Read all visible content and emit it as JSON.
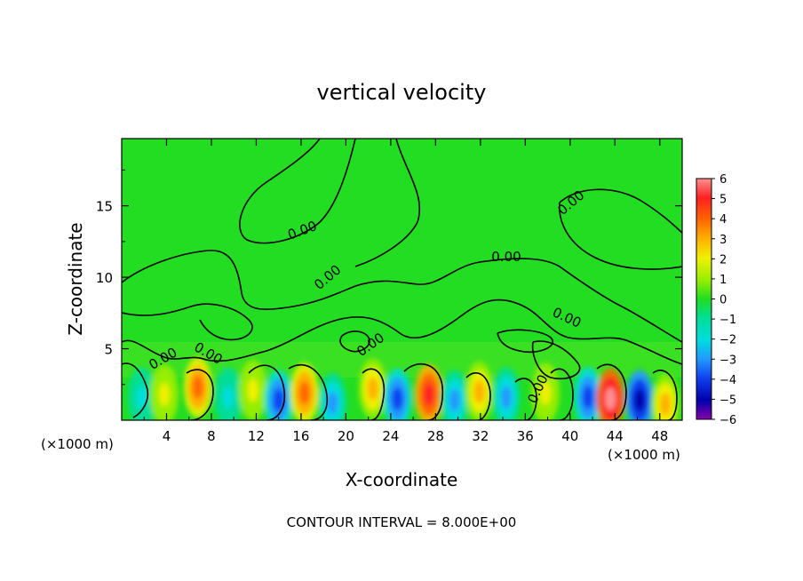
{
  "chart_data": {
    "type": "heatmap",
    "title": "vertical velocity",
    "xlabel": "X-coordinate",
    "ylabel": "Z-coordinate",
    "x_unit_left": "(×1000 m)",
    "x_unit_right": "(×1000 m)",
    "xlim": [
      0,
      50
    ],
    "ylim": [
      0,
      19.7
    ],
    "x_ticks": [
      4,
      8,
      12,
      16,
      20,
      24,
      28,
      32,
      36,
      40,
      44,
      48
    ],
    "y_ticks": [
      5,
      10,
      15
    ],
    "colorbar": {
      "ticks": [
        6,
        5,
        4,
        3,
        2,
        1,
        0,
        -1,
        -2,
        -3,
        -4,
        -5,
        -6
      ],
      "range": [
        -6,
        6
      ]
    },
    "contour_label": "0.00",
    "contour_interval_text": "CONTOUR INTERVAL = 8.000E+00",
    "colors": {
      "background_field": "#22dd22",
      "positive_max": "#ff2020",
      "negative_max": "#1010dd"
    },
    "extrema": [
      {
        "x": 6.8,
        "z": 2.3,
        "w": 4
      },
      {
        "x": 9.5,
        "z": 1.6,
        "w": -2
      },
      {
        "x": 11.7,
        "z": 2.1,
        "w": 2
      },
      {
        "x": 14.0,
        "z": 1.4,
        "w": -4
      },
      {
        "x": 16.3,
        "z": 1.9,
        "w": 4
      },
      {
        "x": 18.8,
        "z": 1.2,
        "w": -3
      },
      {
        "x": 22.4,
        "z": 2.2,
        "w": 3
      },
      {
        "x": 24.6,
        "z": 1.5,
        "w": -4
      },
      {
        "x": 27.4,
        "z": 1.8,
        "w": 5
      },
      {
        "x": 29.7,
        "z": 1.4,
        "w": -3
      },
      {
        "x": 31.9,
        "z": 2.0,
        "w": 3
      },
      {
        "x": 34.3,
        "z": 1.6,
        "w": -3
      },
      {
        "x": 37.8,
        "z": 1.9,
        "w": 2
      },
      {
        "x": 41.6,
        "z": 1.6,
        "w": -4
      },
      {
        "x": 43.6,
        "z": 1.5,
        "w": 6
      },
      {
        "x": 46.2,
        "z": 1.4,
        "w": -5
      },
      {
        "x": 48.5,
        "z": 1.1,
        "w": 3
      },
      {
        "x": 1.8,
        "z": 1.6,
        "w": -2
      },
      {
        "x": 3.8,
        "z": 1.8,
        "w": 2
      }
    ]
  }
}
